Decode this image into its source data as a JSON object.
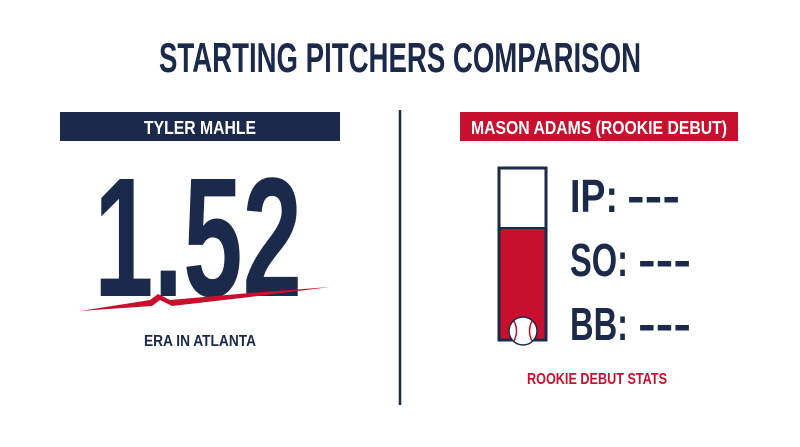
{
  "header": {
    "title": "STARTING PITCHERS COMPARISON"
  },
  "left": {
    "name": "TYLER MAHLE",
    "stat_value": "1.52",
    "stat_caption": "ERA IN ATLANTA"
  },
  "right": {
    "name": "MASON ADAMS (ROOKIE DEBUT)",
    "stats": [
      {
        "label": "IP:",
        "value": "---"
      },
      {
        "label": "SO:",
        "value": "---"
      },
      {
        "label": "BB:",
        "value": "---"
      }
    ],
    "caption": "ROOKIE DEBUT STATS"
  }
}
